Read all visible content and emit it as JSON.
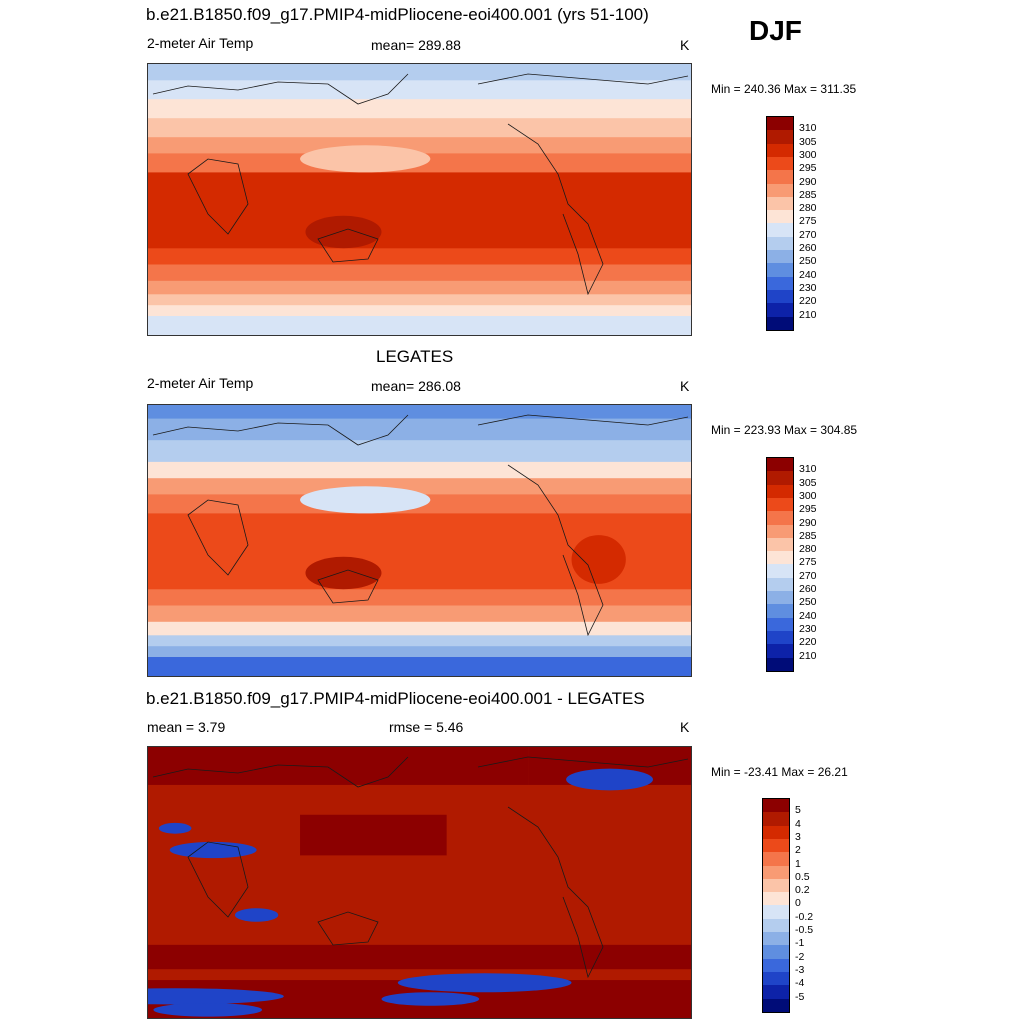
{
  "season": "DJF",
  "panels": [
    {
      "id": "model",
      "title": "b.e21.B1850.f09_g17.PMIP4-midPliocene-eoi400.001 (yrs 51-100)",
      "left_label": "2-meter Air Temp",
      "center_label": "mean= 289.88",
      "units": "K",
      "minmax": "Min = 240.36 Max = 311.35"
    },
    {
      "id": "obs",
      "title": "LEGATES",
      "left_label": "2-meter Air Temp",
      "center_label": "mean= 286.08",
      "units": "K",
      "minmax": "Min = 223.93 Max = 304.85"
    },
    {
      "id": "diff",
      "title": "b.e21.B1850.f09_g17.PMIP4-midPliocene-eoi400.001 - LEGATES",
      "left_label": "mean =   3.79",
      "center_label": "rmse =   5.46",
      "units": "K",
      "minmax": "Min = -23.41 Max =  26.21"
    }
  ],
  "chart_data": [
    {
      "type": "heatmap",
      "title": "b.e21.B1850.f09_g17.PMIP4-midPliocene-eoi400.001 (yrs 51-100)",
      "variable": "2-meter Air Temp",
      "units": "K",
      "mean": 289.88,
      "min": 240.36,
      "max": 311.35,
      "colorbar_labels": [
        "310",
        "305",
        "300",
        "295",
        "290",
        "285",
        "280",
        "275",
        "270",
        "260",
        "250",
        "240",
        "230",
        "220",
        "210"
      ],
      "colors": [
        "#8c0000",
        "#b01a00",
        "#d42a00",
        "#ec4a1a",
        "#f4754a",
        "#f89b74",
        "#fbc4a8",
        "#fde4d6",
        "#d7e4f6",
        "#b4cdee",
        "#8cb0e6",
        "#5f8ee0",
        "#3a68dc",
        "#1f44c8",
        "#0d22a8",
        "#000c78"
      ]
    },
    {
      "type": "heatmap",
      "title": "LEGATES",
      "variable": "2-meter Air Temp",
      "units": "K",
      "mean": 286.08,
      "min": 223.93,
      "max": 304.85,
      "colorbar_labels": [
        "310",
        "305",
        "300",
        "295",
        "290",
        "285",
        "280",
        "275",
        "270",
        "260",
        "250",
        "240",
        "230",
        "220",
        "210"
      ],
      "colors": [
        "#8c0000",
        "#b01a00",
        "#d42a00",
        "#ec4a1a",
        "#f4754a",
        "#f89b74",
        "#fbc4a8",
        "#fde4d6",
        "#d7e4f6",
        "#b4cdee",
        "#8cb0e6",
        "#5f8ee0",
        "#3a68dc",
        "#1f44c8",
        "#0d22a8",
        "#000c78"
      ]
    },
    {
      "type": "heatmap",
      "title": "b.e21.B1850.f09_g17.PMIP4-midPliocene-eoi400.001 - LEGATES",
      "variable": "difference",
      "units": "K",
      "mean": 3.79,
      "rmse": 5.46,
      "min": -23.41,
      "max": 26.21,
      "colorbar_labels": [
        "5",
        "4",
        "3",
        "2",
        "1",
        "0.5",
        "0.2",
        "0",
        "-0.2",
        "-0.5",
        "-1",
        "-2",
        "-3",
        "-4",
        "-5"
      ],
      "colors": [
        "#8c0000",
        "#b01a00",
        "#d42a00",
        "#ec4a1a",
        "#f4754a",
        "#f89b74",
        "#fbc4a8",
        "#fde4d6",
        "#d7e4f6",
        "#b4cdee",
        "#8cb0e6",
        "#5f8ee0",
        "#3a68dc",
        "#1f44c8",
        "#0d22a8",
        "#000c78"
      ]
    }
  ]
}
